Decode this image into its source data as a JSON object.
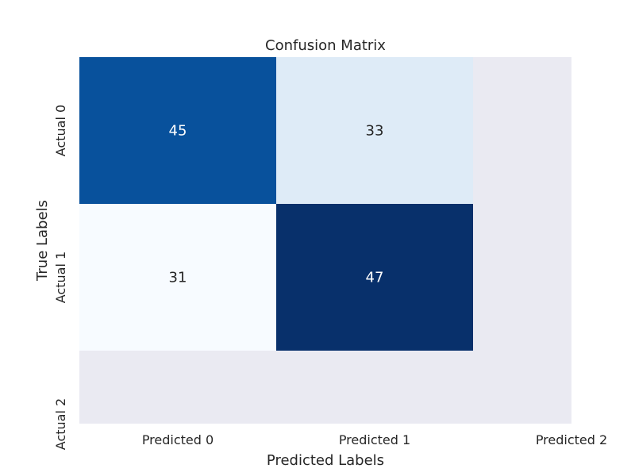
{
  "chart_data": {
    "type": "heatmap",
    "title": "Confusion Matrix",
    "xlabel": "Predicted Labels",
    "ylabel": "True Labels",
    "x_categories": [
      "Predicted 0",
      "Predicted 1",
      "Predicted 2"
    ],
    "y_categories": [
      "Actual 0",
      "Actual 1",
      "Actual 2"
    ],
    "values": [
      [
        45,
        33
      ],
      [
        31,
        47
      ]
    ],
    "colormap": "Blues",
    "color_range": [
      31,
      47
    ],
    "empty_cell_color": "#EAEAF2",
    "text_colors": {
      "dark_cell": "#ffffff",
      "light_cell": "#262626"
    }
  }
}
